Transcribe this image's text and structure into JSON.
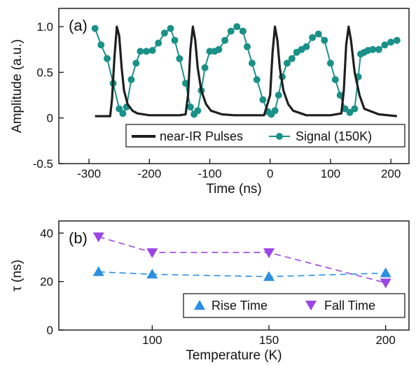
{
  "chart_data": [
    {
      "type": "line",
      "panel_label": "(a)",
      "xlabel": "Time (ns)",
      "ylabel": "Amplitude (a.u.)",
      "xlim": [
        -350,
        230
      ],
      "ylim": [
        -0.5,
        1.2
      ],
      "xticks": [
        -300,
        -200,
        -100,
        0,
        100,
        200
      ],
      "yticks": [
        -0.5,
        0,
        0.5,
        1.0
      ],
      "ytick_labels": [
        "-0.5",
        "0",
        "0.5",
        "1.0"
      ],
      "grid": false,
      "legend_position": "bottom-right",
      "series": [
        {
          "name": "near-IR Pulses",
          "color": "#1f1f1f",
          "style": "line",
          "x": [
            -290,
            -265,
            -262,
            -258,
            -254,
            -250,
            -246,
            -242,
            -236,
            -228,
            -220,
            -200,
            -180,
            -150,
            -140,
            -136,
            -132,
            -128,
            -124,
            -120,
            -114,
            -106,
            -98,
            -80,
            -60,
            -30,
            -10,
            0,
            4,
            8,
            12,
            16,
            22,
            30,
            38,
            60,
            80,
            100,
            118,
            122,
            126,
            130,
            134,
            140,
            148,
            156,
            180,
            210
          ],
          "y": [
            0.02,
            0.02,
            0.2,
            0.65,
            1.0,
            0.9,
            0.55,
            0.3,
            0.15,
            0.08,
            0.05,
            0.03,
            0.03,
            0.03,
            0.04,
            0.25,
            0.75,
            1.0,
            0.85,
            0.55,
            0.3,
            0.15,
            0.08,
            0.04,
            0.03,
            0.03,
            0.03,
            0.25,
            0.72,
            1.0,
            0.85,
            0.55,
            0.3,
            0.15,
            0.08,
            0.03,
            0.03,
            0.03,
            0.05,
            0.3,
            0.8,
            1.0,
            0.85,
            0.5,
            0.25,
            0.1,
            0.04,
            0.02
          ]
        },
        {
          "name": "Signal (150K)",
          "color": "#1a9188",
          "style": "line-markers",
          "x": [
            -290,
            -280,
            -270,
            -260,
            -250,
            -244,
            -238,
            -230,
            -222,
            -215,
            -205,
            -195,
            -185,
            -175,
            -165,
            -158,
            -150,
            -140,
            -132,
            -126,
            -120,
            -114,
            -108,
            -100,
            -92,
            -85,
            -75,
            -65,
            -55,
            -45,
            -38,
            -30,
            -22,
            -12,
            -4,
            2,
            8,
            14,
            20,
            28,
            36,
            44,
            52,
            60,
            70,
            80,
            90,
            100,
            108,
            116,
            124,
            132,
            140,
            146,
            150,
            156,
            162,
            170,
            180,
            190,
            200,
            210
          ],
          "y": [
            0.98,
            0.8,
            0.65,
            0.38,
            0.1,
            0.05,
            0.12,
            0.42,
            0.6,
            0.73,
            0.73,
            0.74,
            0.82,
            0.93,
            0.98,
            0.85,
            0.65,
            0.38,
            0.12,
            0.04,
            0.08,
            0.3,
            0.55,
            0.73,
            0.73,
            0.75,
            0.85,
            0.95,
            1.0,
            0.95,
            0.78,
            0.6,
            0.42,
            0.2,
            0.07,
            0.04,
            0.08,
            0.25,
            0.45,
            0.6,
            0.65,
            0.72,
            0.75,
            0.78,
            0.88,
            0.92,
            0.85,
            0.6,
            0.42,
            0.25,
            0.1,
            0.06,
            0.1,
            0.45,
            0.7,
            0.72,
            0.74,
            0.75,
            0.75,
            0.8,
            0.83,
            0.85
          ]
        }
      ]
    },
    {
      "type": "scatter",
      "panel_label": "(b)",
      "xlabel": "Temperature (K)",
      "ylabel": "τ (ns)",
      "xlim": [
        60,
        210
      ],
      "ylim": [
        0,
        45
      ],
      "xticks": [
        100,
        150,
        200
      ],
      "yticks": [
        0,
        20,
        40
      ],
      "grid": false,
      "legend_position": "bottom-right",
      "series": [
        {
          "name": "Rise Time",
          "color": "#2b8fe0",
          "marker": "triangle-up",
          "x": [
            77,
            100,
            150,
            200
          ],
          "y": [
            24,
            23,
            22,
            23.5
          ]
        },
        {
          "name": "Fall Time",
          "color": "#9b45e6",
          "marker": "triangle-down",
          "x": [
            77,
            100,
            150,
            200
          ],
          "y": [
            38.5,
            32,
            32,
            19.5
          ]
        }
      ]
    }
  ]
}
